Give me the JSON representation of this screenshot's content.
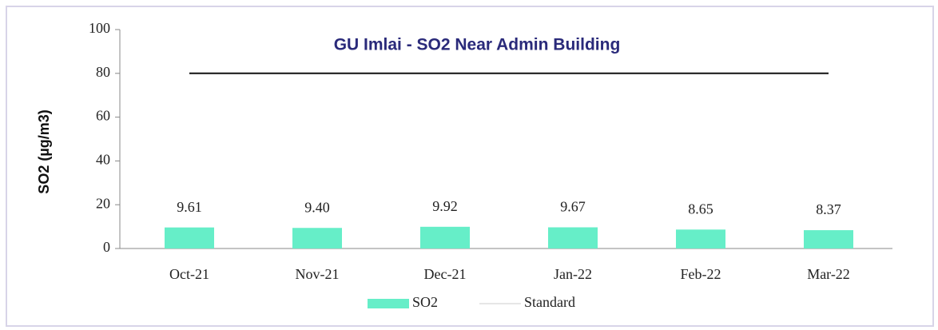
{
  "chart_data": {
    "type": "bar",
    "title": "GU Imlai - SO2  Near Admin Building",
    "y_label": "SO2 (µg/m3)",
    "categories": [
      "Oct-21",
      "Nov-21",
      "Dec-21",
      "Jan-22",
      "Feb-22",
      "Mar-22"
    ],
    "series": [
      {
        "name": "SO2",
        "color": "#66eec8",
        "values": [
          9.61,
          9.4,
          9.92,
          9.67,
          8.65,
          8.37
        ],
        "value_labels": [
          "9.61",
          "9.40",
          "9.92",
          "9.67",
          "8.65",
          "8.37"
        ]
      },
      {
        "name": "Standard",
        "type": "line",
        "color": "#111111",
        "values": [
          80,
          80,
          80,
          80,
          80,
          80
        ]
      }
    ],
    "ylim": [
      0,
      100
    ],
    "yticks": [
      0,
      20,
      40,
      60,
      80,
      100
    ],
    "legend": "bottom"
  }
}
